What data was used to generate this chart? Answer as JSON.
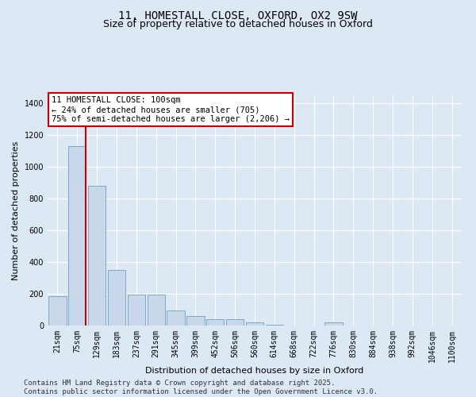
{
  "title_line1": "11, HOMESTALL CLOSE, OXFORD, OX2 9SW",
  "title_line2": "Size of property relative to detached houses in Oxford",
  "xlabel": "Distribution of detached houses by size in Oxford",
  "ylabel": "Number of detached properties",
  "categories": [
    "21sqm",
    "75sqm",
    "129sqm",
    "183sqm",
    "237sqm",
    "291sqm",
    "345sqm",
    "399sqm",
    "452sqm",
    "506sqm",
    "560sqm",
    "614sqm",
    "668sqm",
    "722sqm",
    "776sqm",
    "830sqm",
    "884sqm",
    "938sqm",
    "992sqm",
    "1046sqm",
    "1100sqm"
  ],
  "values": [
    185,
    1130,
    880,
    350,
    195,
    195,
    95,
    60,
    40,
    40,
    20,
    5,
    0,
    0,
    20,
    0,
    0,
    0,
    0,
    0,
    0
  ],
  "bar_color": "#c8d8ea",
  "bar_edge_color": "#7aaac8",
  "vline_color": "#cc0000",
  "vline_x": 1.45,
  "annotation_text": "11 HOMESTALL CLOSE: 100sqm\n← 24% of detached houses are smaller (705)\n75% of semi-detached houses are larger (2,206) →",
  "annotation_box_edgecolor": "#cc0000",
  "annotation_box_facecolor": "#ffffff",
  "ylim": [
    0,
    1450
  ],
  "yticks": [
    0,
    200,
    400,
    600,
    800,
    1000,
    1200,
    1400
  ],
  "footer_text": "Contains HM Land Registry data © Crown copyright and database right 2025.\nContains public sector information licensed under the Open Government Licence v3.0.",
  "background_color": "#dde8f5",
  "plot_background_color": "#dde8f5",
  "grid_color": "#ffffff",
  "title_fontsize": 10,
  "subtitle_fontsize": 9,
  "label_fontsize": 8,
  "tick_fontsize": 7,
  "annotation_fontsize": 7.5,
  "footer_fontsize": 6.5
}
